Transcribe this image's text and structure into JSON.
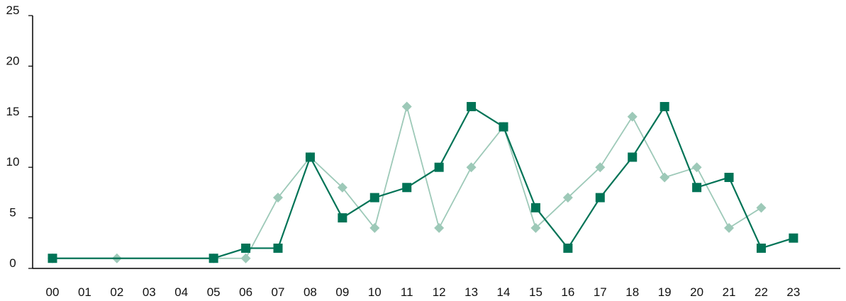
{
  "chart_data": {
    "type": "line",
    "categories": [
      "00",
      "01",
      "02",
      "03",
      "04",
      "05",
      "06",
      "07",
      "08",
      "09",
      "10",
      "11",
      "12",
      "13",
      "14",
      "15",
      "16",
      "17",
      "18",
      "19",
      "20",
      "21",
      "22",
      "23"
    ],
    "ylim": [
      0,
      25
    ],
    "yticks": [
      0,
      5,
      10,
      15,
      20,
      25
    ],
    "grid": false,
    "legend": "none",
    "title": "",
    "xlabel": "",
    "ylabel": "",
    "series": [
      {
        "marker": "diamond",
        "color": "#9dc9b8",
        "values": [
          1,
          null,
          1,
          null,
          null,
          1,
          1,
          7,
          11,
          8,
          4,
          16,
          4,
          10,
          14,
          4,
          7,
          10,
          15,
          9,
          10,
          4,
          6,
          null
        ]
      },
      {
        "marker": "square",
        "color": "#007356",
        "values": [
          1,
          null,
          null,
          null,
          null,
          1,
          2,
          2,
          11,
          5,
          7,
          8,
          10,
          16,
          14,
          6,
          2,
          7,
          11,
          16,
          8,
          9,
          2,
          3
        ]
      }
    ]
  }
}
